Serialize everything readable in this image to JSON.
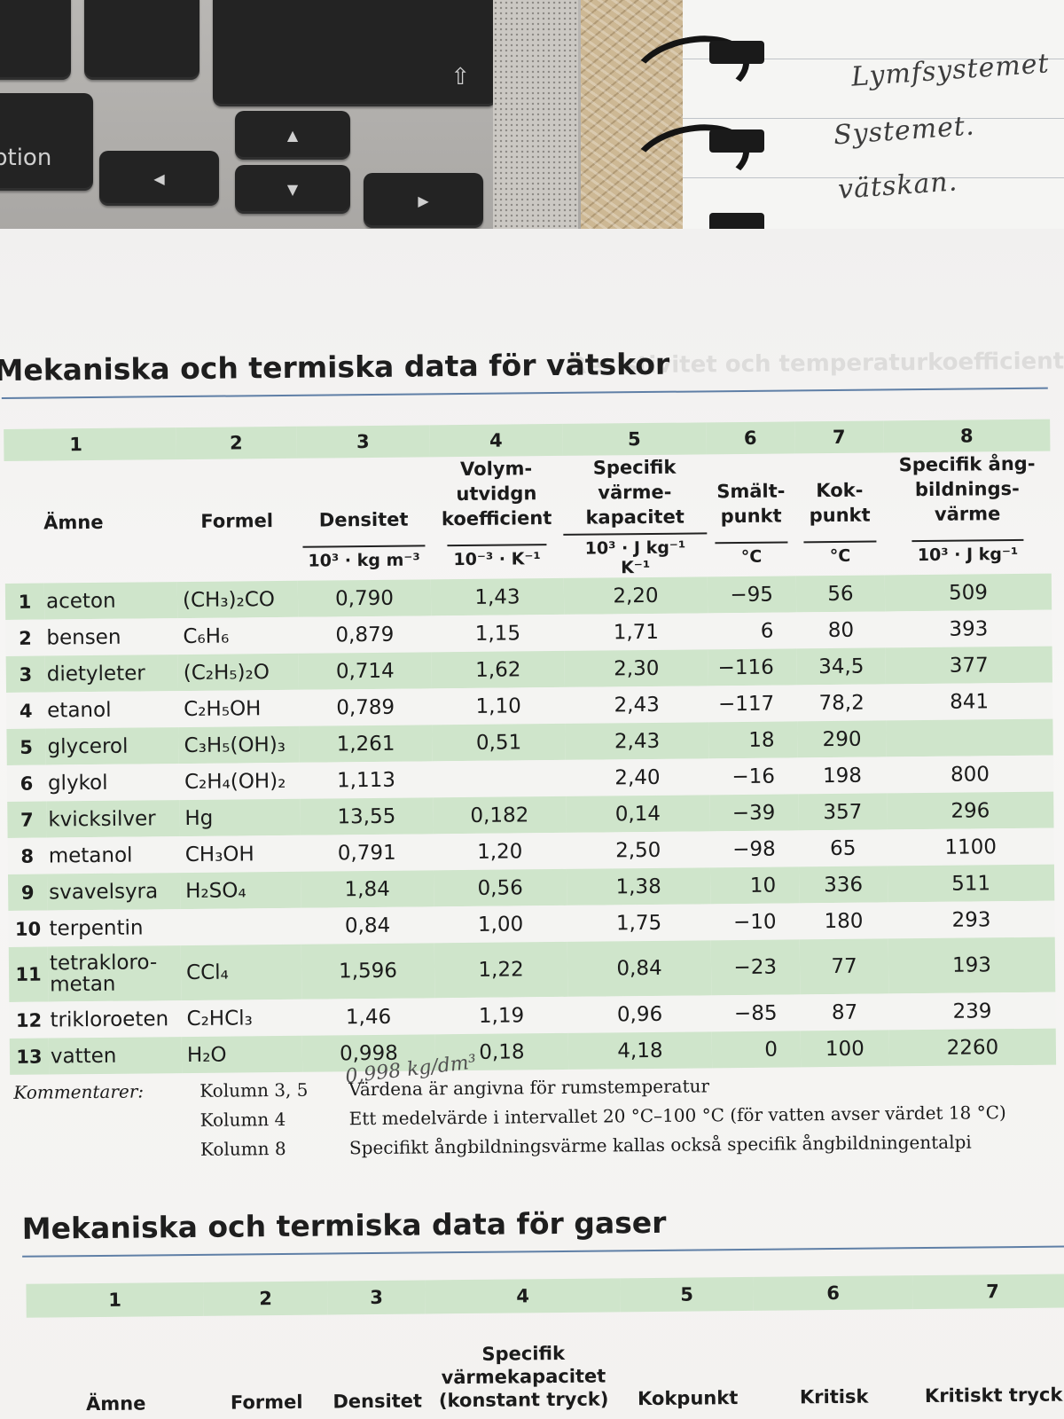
{
  "photo": {
    "keyboard": {
      "option_key": "ption",
      "arrow_up": "▲",
      "arrow_down": "▼",
      "arrow_left": "◀",
      "arrow_right": "▶",
      "shift_key": "⇧"
    },
    "notebook_lines": [
      "Lymfsystemet",
      "Systemet.",
      "vätskan."
    ]
  },
  "liquids": {
    "title": "Mekaniska och termiska data för vätskor",
    "column_numbers": [
      "1",
      "2",
      "3",
      "4",
      "5",
      "6",
      "7",
      "8"
    ],
    "headers": {
      "substance": "Ämne",
      "formula": "Formel",
      "density": "Densitet",
      "expansion": [
        "Volym-",
        "utvidgn",
        "koefficient"
      ],
      "heat_capacity": [
        "Specifik",
        "värme-",
        "kapacitet"
      ],
      "melting": [
        "Smält-",
        "punkt"
      ],
      "boiling": [
        "Kok-",
        "punkt"
      ],
      "vaporization": [
        "Specifik ång-",
        "bildnings-",
        "värme"
      ]
    },
    "units": {
      "density": "10³ · kg m⁻³",
      "expansion": "10⁻³ · K⁻¹",
      "heat_capacity": "10³ · J kg⁻¹ K⁻¹",
      "melting": "°C",
      "boiling": "°C",
      "vaporization": "10³ · J kg⁻¹"
    },
    "rows": [
      {
        "no": "1",
        "name": "aceton",
        "formula": "(CH₃)₂CO",
        "density": "0,790",
        "expansion": "1,43",
        "heat_capacity": "2,20",
        "melting": "−95",
        "boiling": "56",
        "vaporization": "509"
      },
      {
        "no": "2",
        "name": "bensen",
        "formula": "C₆H₆",
        "density": "0,879",
        "expansion": "1,15",
        "heat_capacity": "1,71",
        "melting": "6",
        "boiling": "80",
        "vaporization": "393"
      },
      {
        "no": "3",
        "name": "dietyleter",
        "formula": "(C₂H₅)₂O",
        "density": "0,714",
        "expansion": "1,62",
        "heat_capacity": "2,30",
        "melting": "−116",
        "boiling": "34,5",
        "vaporization": "377"
      },
      {
        "no": "4",
        "name": "etanol",
        "formula": "C₂H₅OH",
        "density": "0,789",
        "expansion": "1,10",
        "heat_capacity": "2,43",
        "melting": "−117",
        "boiling": "78,2",
        "vaporization": "841"
      },
      {
        "no": "5",
        "name": "glycerol",
        "formula": "C₃H₅(OH)₃",
        "density": "1,261",
        "expansion": "0,51",
        "heat_capacity": "2,43",
        "melting": "18",
        "boiling": "290",
        "vaporization": ""
      },
      {
        "no": "6",
        "name": "glykol",
        "formula": "C₂H₄(OH)₂",
        "density": "1,113",
        "expansion": "",
        "heat_capacity": "2,40",
        "melting": "−16",
        "boiling": "198",
        "vaporization": "800"
      },
      {
        "no": "7",
        "name": "kvicksilver",
        "formula": "Hg",
        "density": "13,55",
        "expansion": "0,182",
        "heat_capacity": "0,14",
        "melting": "−39",
        "boiling": "357",
        "vaporization": "296"
      },
      {
        "no": "8",
        "name": "metanol",
        "formula": "CH₃OH",
        "density": "0,791",
        "expansion": "1,20",
        "heat_capacity": "2,50",
        "melting": "−98",
        "boiling": "65",
        "vaporization": "1100"
      },
      {
        "no": "9",
        "name": "svavelsyra",
        "formula": "H₂SO₄",
        "density": "1,84",
        "expansion": "0,56",
        "heat_capacity": "1,38",
        "melting": "10",
        "boiling": "336",
        "vaporization": "511"
      },
      {
        "no": "10",
        "name": "terpentin",
        "formula": "",
        "density": "0,84",
        "expansion": "1,00",
        "heat_capacity": "1,75",
        "melting": "−10",
        "boiling": "180",
        "vaporization": "293"
      },
      {
        "no": "11",
        "name": "tetrakloro-\nmetan",
        "formula": "CCl₄",
        "density": "1,596",
        "expansion": "1,22",
        "heat_capacity": "0,84",
        "melting": "−23",
        "boiling": "77",
        "vaporization": "193"
      },
      {
        "no": "12",
        "name": "trikloroeten",
        "formula": "C₂HCl₃",
        "density": "1,46",
        "expansion": "1,19",
        "heat_capacity": "0,96",
        "melting": "−85",
        "boiling": "87",
        "vaporization": "239"
      },
      {
        "no": "13",
        "name": "vatten",
        "formula": "H₂O",
        "density": "0,998",
        "expansion": "0,18",
        "heat_capacity": "4,18",
        "melting": "0",
        "boiling": "100",
        "vaporization": "2260"
      }
    ],
    "handwritten_note": "0,998 kg/dm³",
    "comments_label": "Kommentarer:",
    "comments": [
      {
        "key": "Kolumn 3, 5",
        "text": "Värdena är angivna för rumstemperatur"
      },
      {
        "key": "Kolumn 4",
        "text": "Ett medelvärde i intervallet 20 °C–100 °C (för vatten avser värdet 18 °C)"
      },
      {
        "key": "Kolumn 8",
        "text": "Specifikt ångbildningsvärme kallas också specifik ångbildningentalpi"
      }
    ]
  },
  "gases": {
    "title": "Mekaniska och termiska data för gaser",
    "column_numbers": [
      "1",
      "2",
      "3",
      "4",
      "5",
      "6",
      "7"
    ],
    "headers": {
      "substance": "Ämne",
      "formula": "Formel",
      "density": "Densitet",
      "heat_capacity": [
        "Specifik",
        "värmekapacitet",
        "(konstant tryck)"
      ],
      "boiling": "Kokpunkt",
      "critical": "Kritisk",
      "critical_pressure": "Kritiskt tryck"
    }
  },
  "bleed_through": "Resistivitet och temperaturkoefficient"
}
